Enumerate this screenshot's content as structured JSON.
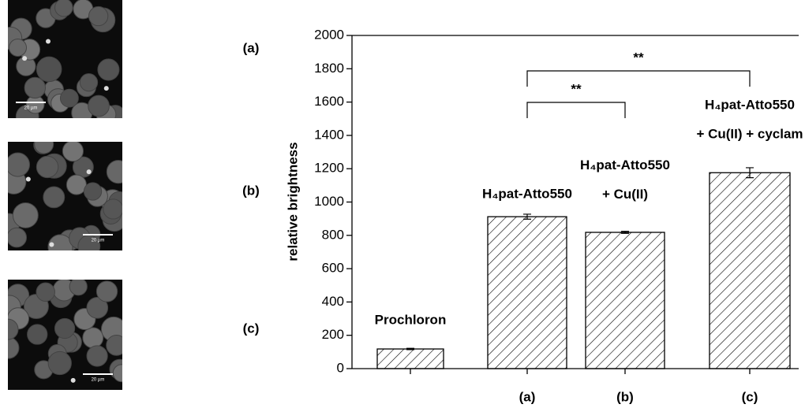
{
  "panels": [
    {
      "label": "(a)",
      "scale_bar": "20 µm"
    },
    {
      "label": "(b)",
      "scale_bar": "20 µm"
    },
    {
      "label": "(c)",
      "scale_bar": "20 µm"
    }
  ],
  "chart_data": {
    "type": "bar",
    "y_label": "relative brightness",
    "categories": [
      null,
      "(a)",
      "(b)",
      "(c)"
    ],
    "bar_labels": [
      [
        "Prochloron"
      ],
      [
        "H₄pat-Atto550"
      ],
      [
        "H₄pat-Atto550",
        "+ Cu(II)"
      ],
      [
        "H₄pat-Atto550",
        "+ Cu(II) + cyclam"
      ]
    ],
    "values": [
      118,
      912,
      818,
      1176
    ],
    "errors": [
      4,
      15,
      6,
      30
    ],
    "color": "#000000",
    "hatch": true,
    "significance": [
      "**",
      "**"
    ],
    "ylim": [
      0,
      2000
    ],
    "yticks": [
      0,
      200,
      400,
      600,
      800,
      1000,
      1200,
      1400,
      1600,
      1800,
      2000
    ]
  }
}
